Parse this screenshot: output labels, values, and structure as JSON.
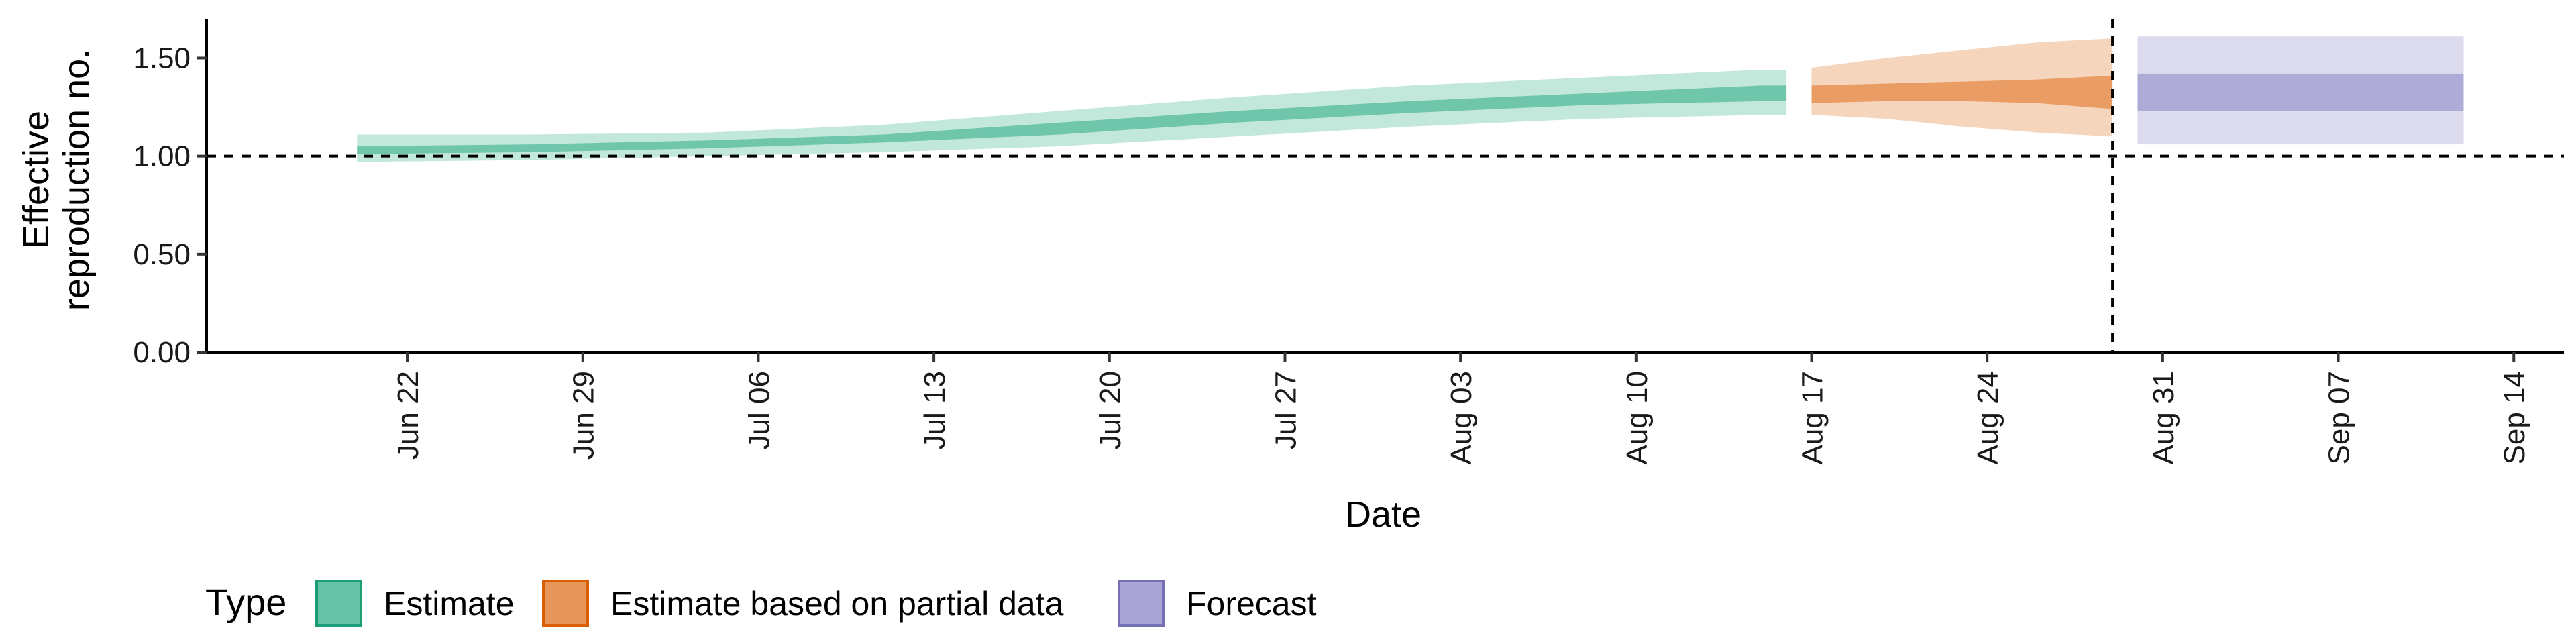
{
  "chart_data": {
    "type": "area",
    "xlabel": "Date",
    "ylabel_lines": [
      "Effective",
      "reproduction no."
    ],
    "x_ticks": [
      "Jun 22",
      "Jun 29",
      "Jul 06",
      "Jul 13",
      "Jul 20",
      "Jul 27",
      "Aug 03",
      "Aug 10",
      "Aug 17",
      "Aug 24",
      "Aug 31",
      "Sep 07",
      "Sep 14"
    ],
    "y_ticks": [
      "0.00",
      "0.50",
      "1.00",
      "1.50"
    ],
    "ylim": [
      0,
      1.7
    ],
    "xlim": [
      "2020-06-14",
      "2020-09-16"
    ],
    "reference_lines": {
      "y": 1.0,
      "x": "2020-08-29"
    },
    "legend": {
      "title": "Type",
      "position": "bottom-left",
      "items": [
        {
          "label": "Estimate",
          "color": "#66c2a5",
          "border": "#1b9e77"
        },
        {
          "label": "Estimate based on partial data",
          "color": "#e8975a",
          "border": "#d95f02"
        },
        {
          "label": "Forecast",
          "color": "#a9a5d4",
          "border": "#7570b3"
        }
      ]
    },
    "series": [
      {
        "name": "Estimate",
        "color": "#66c2a5",
        "x": [
          "2020-06-20",
          "2020-06-27",
          "2020-07-04",
          "2020-07-11",
          "2020-07-18",
          "2020-07-25",
          "2020-08-01",
          "2020-08-08",
          "2020-08-15",
          "2020-08-16"
        ],
        "median": [
          1.03,
          1.04,
          1.06,
          1.09,
          1.14,
          1.2,
          1.25,
          1.29,
          1.32,
          1.32
        ],
        "lower_50": [
          1.01,
          1.02,
          1.04,
          1.07,
          1.11,
          1.17,
          1.22,
          1.26,
          1.28,
          1.28
        ],
        "upper_50": [
          1.05,
          1.06,
          1.08,
          1.11,
          1.17,
          1.23,
          1.28,
          1.32,
          1.36,
          1.36
        ],
        "lower_90": [
          0.97,
          0.98,
          1.0,
          1.02,
          1.05,
          1.1,
          1.15,
          1.19,
          1.21,
          1.21
        ],
        "upper_90": [
          1.11,
          1.11,
          1.12,
          1.16,
          1.23,
          1.3,
          1.36,
          1.4,
          1.44,
          1.44
        ]
      },
      {
        "name": "Estimate based on partial data",
        "color": "#e8975a",
        "x": [
          "2020-08-17",
          "2020-08-20",
          "2020-08-23",
          "2020-08-26",
          "2020-08-29"
        ],
        "median": [
          1.31,
          1.32,
          1.33,
          1.33,
          1.32
        ],
        "lower_50": [
          1.27,
          1.28,
          1.28,
          1.27,
          1.24
        ],
        "upper_50": [
          1.36,
          1.37,
          1.38,
          1.39,
          1.41
        ],
        "lower_90": [
          1.21,
          1.19,
          1.15,
          1.12,
          1.1
        ],
        "upper_90": [
          1.45,
          1.5,
          1.54,
          1.58,
          1.6
        ]
      },
      {
        "name": "Forecast",
        "color": "#a9a5d4",
        "x": [
          "2020-08-30",
          "2020-09-12"
        ],
        "median": [
          1.32,
          1.32
        ],
        "lower_50": [
          1.23,
          1.23
        ],
        "upper_50": [
          1.42,
          1.42
        ],
        "lower_90": [
          1.06,
          1.06
        ],
        "upper_90": [
          1.61,
          1.61
        ]
      }
    ]
  }
}
